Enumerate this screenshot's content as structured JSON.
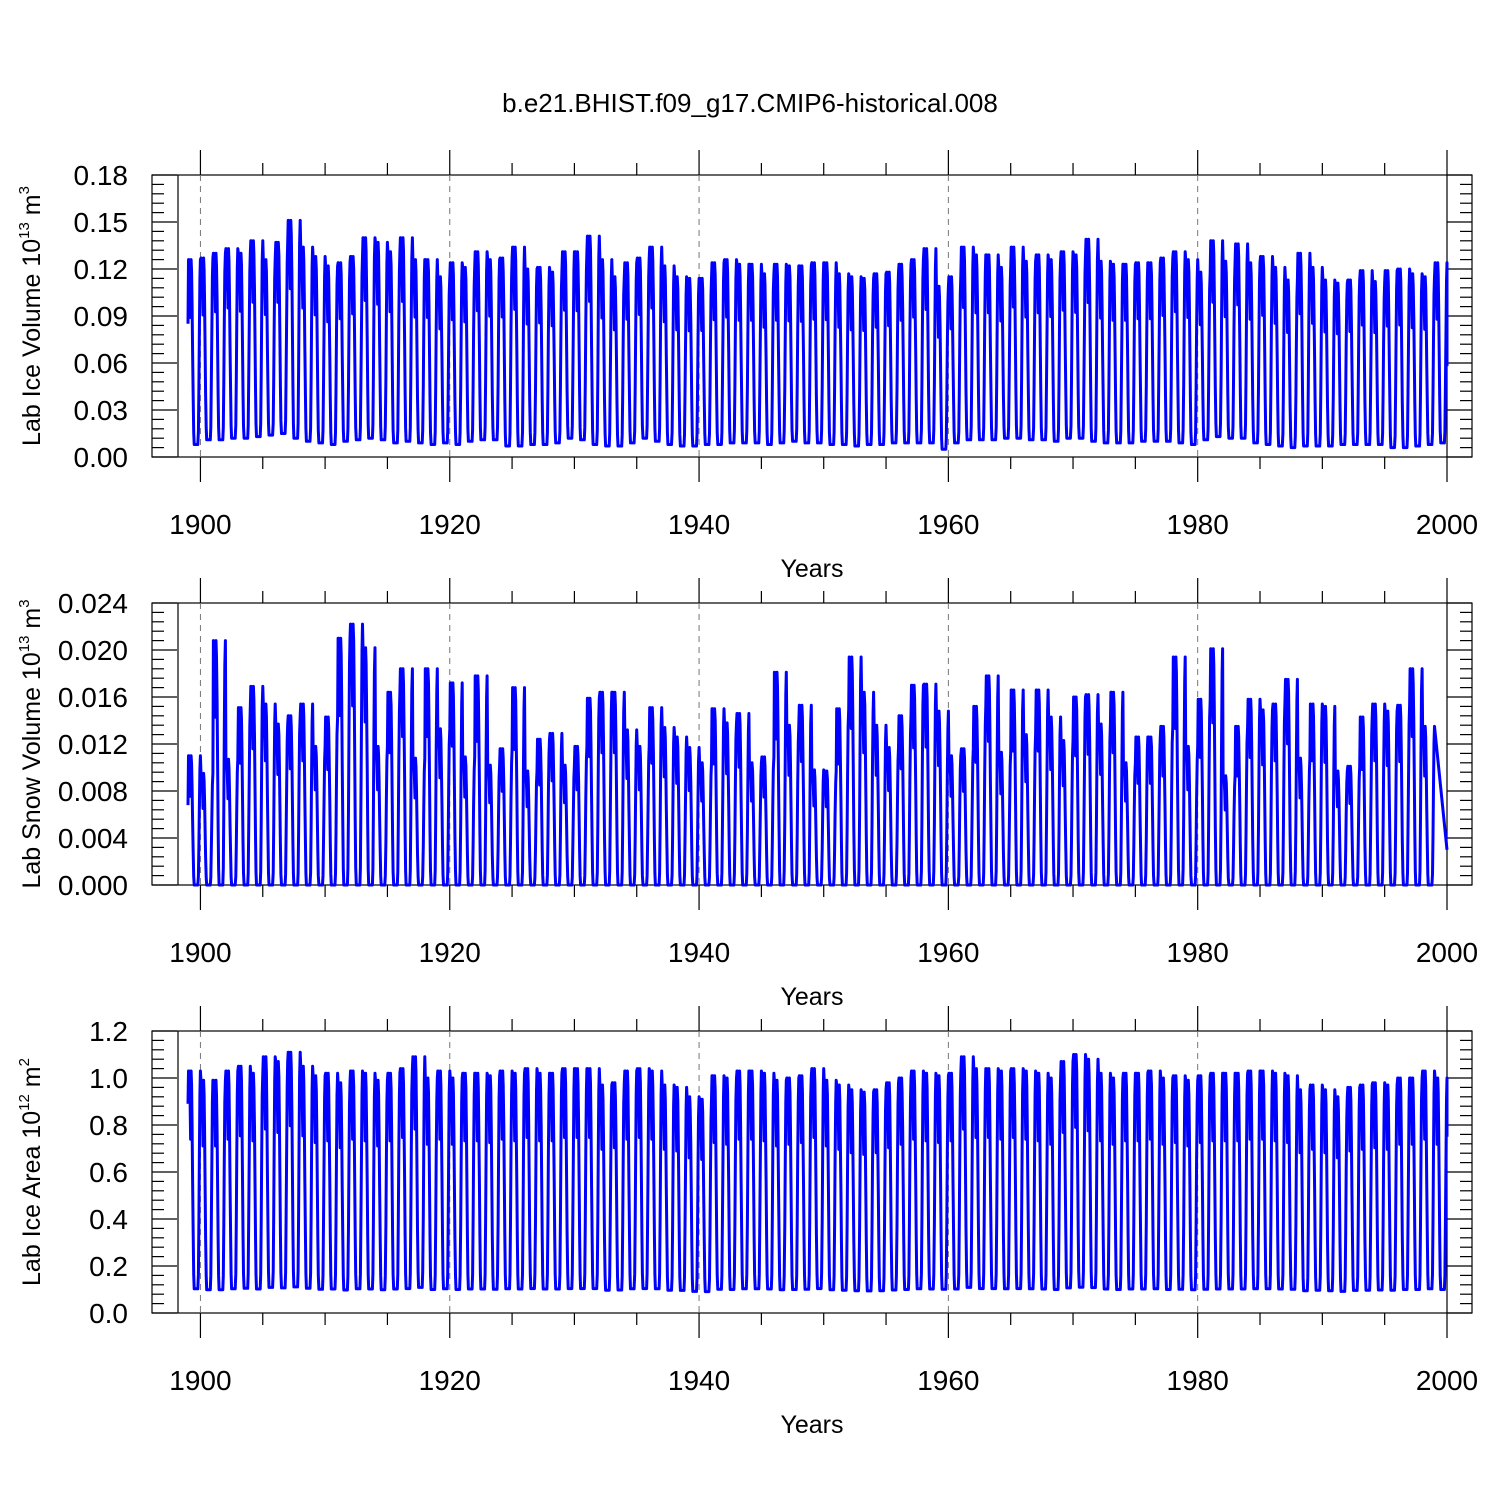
{
  "title": "b.e21.BHIST.f09_g17.CMIP6-historical.008",
  "chart_data": [
    {
      "type": "line",
      "ylabel": "Lab Ice Volume 10",
      "ylabel_exp": "13",
      "ylabel_unit": " m",
      "ylabel_unit_exp": "3",
      "xlabel": "Years",
      "xlim": [
        1898.2,
        2000
      ],
      "ylim": [
        0,
        0.18
      ],
      "yticks": [
        "0.00",
        "0.03",
        "0.06",
        "0.09",
        "0.12",
        "0.15",
        "0.18"
      ],
      "xticks": [
        "1900",
        "1920",
        "1940",
        "1960",
        "1980",
        "2000"
      ],
      "series": [
        {
          "name": "Lab Ice Volume",
          "color": "#0000ff",
          "start_year": 1899.0,
          "start_value": 0.085,
          "end_value": 0.058,
          "annual_peaks": [
            0.126,
            0.127,
            0.13,
            0.133,
            0.13,
            0.138,
            0.126,
            0.137,
            0.151,
            0.134,
            0.128,
            0.122,
            0.124,
            0.128,
            0.14,
            0.137,
            0.131,
            0.14,
            0.126,
            0.126,
            0.115,
            0.124,
            0.121,
            0.131,
            0.126,
            0.127,
            0.134,
            0.12,
            0.121,
            0.118,
            0.131,
            0.131,
            0.141,
            0.126,
            0.115,
            0.124,
            0.127,
            0.134,
            0.122,
            0.115,
            0.114,
            0.114,
            0.124,
            0.126,
            0.123,
            0.123,
            0.117,
            0.123,
            0.122,
            0.122,
            0.124,
            0.124,
            0.117,
            0.115,
            0.114,
            0.117,
            0.118,
            0.123,
            0.126,
            0.133,
            0.109,
            0.115,
            0.134,
            0.129,
            0.129,
            0.121,
            0.134,
            0.125,
            0.129,
            0.126,
            0.131,
            0.129,
            0.139,
            0.125,
            0.123,
            0.123,
            0.124,
            0.124,
            0.127,
            0.131,
            0.126,
            0.118,
            0.138,
            0.125,
            0.136,
            0.124,
            0.128,
            0.121,
            0.113,
            0.13,
            0.121,
            0.113,
            0.111,
            0.113,
            0.119,
            0.112,
            0.119,
            0.12,
            0.117,
            0.115,
            0.124
          ],
          "annual_minima": [
            0.008,
            0.011,
            0.011,
            0.012,
            0.012,
            0.013,
            0.014,
            0.015,
            0.012,
            0.01,
            0.009,
            0.008,
            0.01,
            0.011,
            0.012,
            0.011,
            0.009,
            0.01,
            0.009,
            0.008,
            0.009,
            0.008,
            0.01,
            0.011,
            0.011,
            0.007,
            0.007,
            0.008,
            0.008,
            0.009,
            0.012,
            0.011,
            0.008,
            0.007,
            0.007,
            0.009,
            0.012,
            0.01,
            0.008,
            0.007,
            0.007,
            0.008,
            0.008,
            0.009,
            0.009,
            0.009,
            0.008,
            0.009,
            0.01,
            0.009,
            0.009,
            0.008,
            0.008,
            0.007,
            0.008,
            0.008,
            0.009,
            0.009,
            0.009,
            0.009,
            0.005,
            0.009,
            0.011,
            0.011,
            0.011,
            0.012,
            0.012,
            0.011,
            0.011,
            0.01,
            0.012,
            0.012,
            0.01,
            0.009,
            0.009,
            0.009,
            0.01,
            0.01,
            0.01,
            0.009,
            0.008,
            0.011,
            0.013,
            0.012,
            0.012,
            0.009,
            0.008,
            0.007,
            0.006,
            0.007,
            0.007,
            0.007,
            0.008,
            0.008,
            0.008,
            0.008,
            0.006,
            0.006,
            0.007,
            0.008,
            0.009
          ]
        }
      ]
    },
    {
      "type": "line",
      "ylabel": "Lab Snow Volume 10",
      "ylabel_exp": "13",
      "ylabel_unit": " m",
      "ylabel_unit_exp": "3",
      "xlabel": "Years",
      "xlim": [
        1898.2,
        2000
      ],
      "ylim": [
        0,
        0.024
      ],
      "yticks": [
        "0.000",
        "0.004",
        "0.008",
        "0.012",
        "0.016",
        "0.020",
        "0.024"
      ],
      "xticks": [
        "1900",
        "1920",
        "1940",
        "1960",
        "1980",
        "2000"
      ],
      "series": [
        {
          "name": "Lab Snow Volume",
          "color": "#0000ff",
          "start_year": 1899.0,
          "start_value": 0.0068,
          "end_value": 0.003,
          "annual_peaks": [
            0.011,
            0.0095,
            0.0208,
            0.0107,
            0.0151,
            0.0169,
            0.0154,
            0.0137,
            0.0144,
            0.0154,
            0.0118,
            0.0143,
            0.021,
            0.0222,
            0.0202,
            0.0118,
            0.0164,
            0.0184,
            0.0108,
            0.0184,
            0.0133,
            0.0172,
            0.0109,
            0.0178,
            0.0102,
            0.0116,
            0.0168,
            0.0097,
            0.0124,
            0.0129,
            0.0102,
            0.0118,
            0.0159,
            0.0164,
            0.0164,
            0.0132,
            0.0118,
            0.0151,
            0.0134,
            0.0126,
            0.0117,
            0.0104,
            0.015,
            0.0138,
            0.0146,
            0.0104,
            0.0109,
            0.0181,
            0.0136,
            0.0153,
            0.0098,
            0.0097,
            0.015,
            0.0194,
            0.0164,
            0.0136,
            0.0117,
            0.0144,
            0.017,
            0.0171,
            0.0148,
            0.011,
            0.0116,
            0.0152,
            0.0178,
            0.0113,
            0.0166,
            0.0128,
            0.0166,
            0.0143,
            0.0123,
            0.016,
            0.0162,
            0.0137,
            0.0164,
            0.0104,
            0.0126,
            0.0126,
            0.0135,
            0.0194,
            0.0118,
            0.0158,
            0.0201,
            0.0093,
            0.0135,
            0.0158,
            0.0149,
            0.0154,
            0.0175,
            0.0108,
            0.0154,
            0.0152,
            0.0097,
            0.0101,
            0.0143,
            0.0154,
            0.0148,
            0.0153,
            0.0184,
            0.0135
          ]
        }
      ]
    },
    {
      "type": "line",
      "ylabel": "Lab Ice Area 10",
      "ylabel_exp": "12",
      "ylabel_unit": " m",
      "ylabel_unit_exp": "2",
      "xlabel": "Years",
      "xlim": [
        1898.2,
        2000
      ],
      "ylim": [
        0,
        1.2
      ],
      "yticks": [
        "0.0",
        "0.2",
        "0.4",
        "0.6",
        "0.8",
        "1.0",
        "1.2"
      ],
      "xticks": [
        "1900",
        "1920",
        "1940",
        "1960",
        "1980",
        "2000"
      ],
      "series": [
        {
          "name": "Lab Ice Area",
          "color": "#0000ff",
          "start_year": 1899.0,
          "start_value": 0.89,
          "end_value": 0.75,
          "annual_peaks": [
            1.03,
            0.99,
            0.99,
            1.03,
            1.05,
            1.02,
            1.09,
            1.07,
            1.11,
            1.05,
            1.01,
            1.02,
            0.98,
            1.03,
            1.02,
            0.99,
            1.02,
            1.04,
            1.09,
            1.0,
            1.03,
            1.0,
            1.02,
            1.02,
            1.01,
            1.03,
            1.02,
            1.04,
            1.02,
            1.02,
            1.04,
            1.04,
            1.04,
            0.97,
            0.98,
            1.03,
            1.04,
            1.03,
            0.97,
            0.96,
            0.92,
            0.91,
            1.01,
            1.0,
            1.03,
            1.03,
            1.02,
            0.99,
            1.0,
            1.01,
            1.04,
            0.99,
            0.97,
            0.95,
            0.94,
            0.95,
            0.98,
            1.0,
            1.03,
            1.02,
            1.01,
            1.02,
            1.09,
            1.04,
            1.04,
            1.03,
            1.04,
            1.03,
            1.02,
            1.0,
            1.07,
            1.1,
            1.08,
            1.02,
            1.0,
            1.02,
            1.02,
            1.03,
            1.0,
            1.01,
            0.99,
            1.01,
            1.02,
            1.02,
            1.02,
            1.03,
            1.03,
            1.02,
            1.01,
            0.95,
            0.97,
            0.95,
            0.92,
            0.96,
            0.97,
            0.98,
            0.97,
            1.0,
            1.0,
            1.03,
            1.0
          ]
        }
      ]
    }
  ]
}
